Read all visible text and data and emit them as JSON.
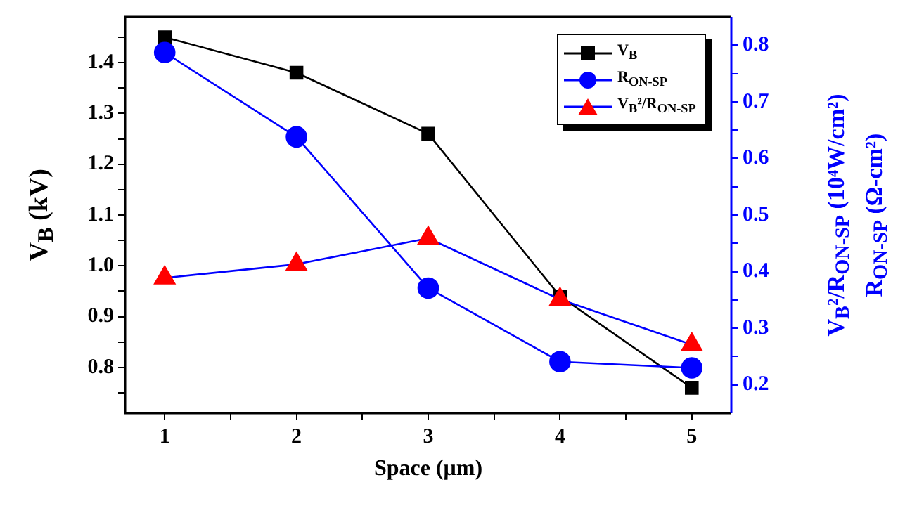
{
  "chart_data": {
    "type": "line",
    "xlabel": "Space (μm)",
    "ylabel": "V$_{B}$ (kV)",
    "y2label": "V$_{B}$²/R$_{ON-SP}$ (10⁴W/cm²)\nR$_{ON-SP}$ (Ω-cm²)",
    "x": [
      1,
      2,
      3,
      4,
      5
    ],
    "series": [
      {
        "name": "V$_{B}$",
        "color": "#000000",
        "marker": "square",
        "values": [
          1.45,
          1.38,
          1.26,
          0.94,
          0.76
        ]
      },
      {
        "name": "R$_{ON-SP}$",
        "color": "#0000ff",
        "marker": "circle",
        "axis": "y2",
        "values": [
          0.787,
          0.638,
          0.371,
          0.241,
          0.23
        ]
      },
      {
        "name": "V$_{B}$²/R$_{ON-SP}$",
        "color": "#0000ff",
        "colors": [
          "#ff0000",
          "#ff0000",
          "#ff0000",
          "#ff0000",
          "#ff0000"
        ],
        "marker": "triangle",
        "axis": "y2",
        "values": [
          0.389,
          0.413,
          0.459,
          0.351,
          0.271
        ]
      }
    ],
    "xlim": [
      0.7,
      5.3
    ],
    "xticks": [
      1,
      {
        "value": 1.5,
        "label": null
      },
      2,
      {
        "value": 2.5,
        "label": null
      },
      3,
      {
        "value": 3.5,
        "label": null
      },
      4,
      {
        "value": 4.5,
        "label": null
      },
      5
    ],
    "ylim": [
      0.71,
      1.49
    ],
    "yticks": [
      {
        "value": 0.75,
        "label": null
      },
      "0.8",
      {
        "value": 0.85,
        "label": null
      },
      {
        "value": 0.9,
        "label": "0.9"
      },
      {
        "value": 0.95,
        "label": null
      },
      {
        "value": 1.0,
        "label": "1.0"
      },
      {
        "value": 1.05,
        "label": null
      },
      {
        "value": 1.1,
        "label": "1.1"
      },
      {
        "value": 1.15,
        "label": null
      },
      {
        "value": 1.2,
        "label": "1.2"
      },
      {
        "value": 1.25,
        "label": null
      },
      {
        "value": 1.3,
        "label": "1.3"
      },
      {
        "value": 1.35,
        "label": null
      },
      {
        "value": 1.4,
        "label": "1.4"
      },
      {
        "value": 1.45,
        "label": null
      }
    ],
    "y2lim": [
      0.15,
      0.85
    ],
    "y2ticks": [
      0.2,
      {
        "value": 0.25,
        "label": null
      },
      0.3,
      {
        "value": 0.35,
        "label": null
      },
      0.4,
      {
        "value": 0.45,
        "label": null
      },
      0.5,
      {
        "value": 0.55,
        "label": null
      },
      0.6,
      {
        "value": 0.65,
        "label": null
      },
      0.7,
      {
        "value": 0.75,
        "label": null
      },
      0.8
    ],
    "legend": "top right",
    "grid": false
  }
}
